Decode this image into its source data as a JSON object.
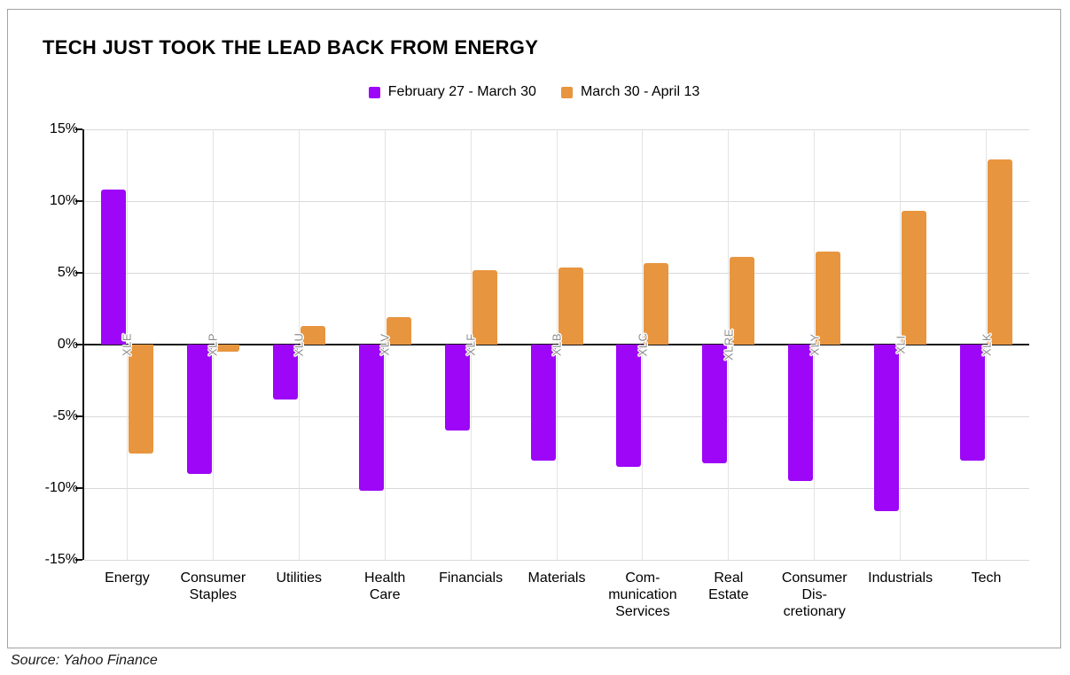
{
  "title": "TECH JUST TOOK THE LEAD BACK FROM ENERGY",
  "source": "Source: Yahoo Finance",
  "chart_data": {
    "type": "bar",
    "title": "TECH JUST TOOK THE LEAD BACK FROM ENERGY",
    "categories": [
      "Energy",
      "Consumer\nStaples",
      "Utilities",
      "Health\nCare",
      "Financials",
      "Materials",
      "Com-\nmunication\nServices",
      "Real\nEstate",
      "Consumer\nDis-\ncretionary",
      "Industrials",
      "Tech"
    ],
    "tickers": [
      "XLE",
      "XLP",
      "XLU",
      "XLV",
      "XLF",
      "XLB",
      "XLC",
      "XLRE",
      "XLY",
      "XLI",
      "XLK"
    ],
    "series": [
      {
        "name": "February 27 - March 30",
        "color": "#9D06F7",
        "values": [
          10.8,
          -9.0,
          -3.8,
          -10.2,
          -6.0,
          -8.1,
          -8.5,
          -8.3,
          -9.5,
          -11.6,
          -8.1
        ]
      },
      {
        "name": "March 30 - April 13",
        "color": "#E8953F",
        "values": [
          -7.6,
          -0.5,
          1.3,
          1.9,
          5.2,
          5.4,
          5.7,
          6.1,
          6.5,
          9.3,
          12.9
        ]
      }
    ],
    "y_axis": {
      "min": -15,
      "max": 15,
      "step": 5,
      "tick_labels": [
        "15%",
        "10%",
        "5%",
        "0%",
        "-5%",
        "-10%",
        "-15%"
      ],
      "unit": "%"
    },
    "ylim": [
      -15,
      15
    ],
    "grid": {
      "horizontal": true,
      "vertical": true
    },
    "legend_position": "top-center",
    "xlabel": "",
    "ylabel": ""
  },
  "colors": {
    "series1": "#9D06F7",
    "series2": "#E8953F",
    "gridline": "#d9d9d9",
    "zero_line": "#141414",
    "ticker_text": "#8c8c8c",
    "frame_border": "#a3a3a3"
  }
}
